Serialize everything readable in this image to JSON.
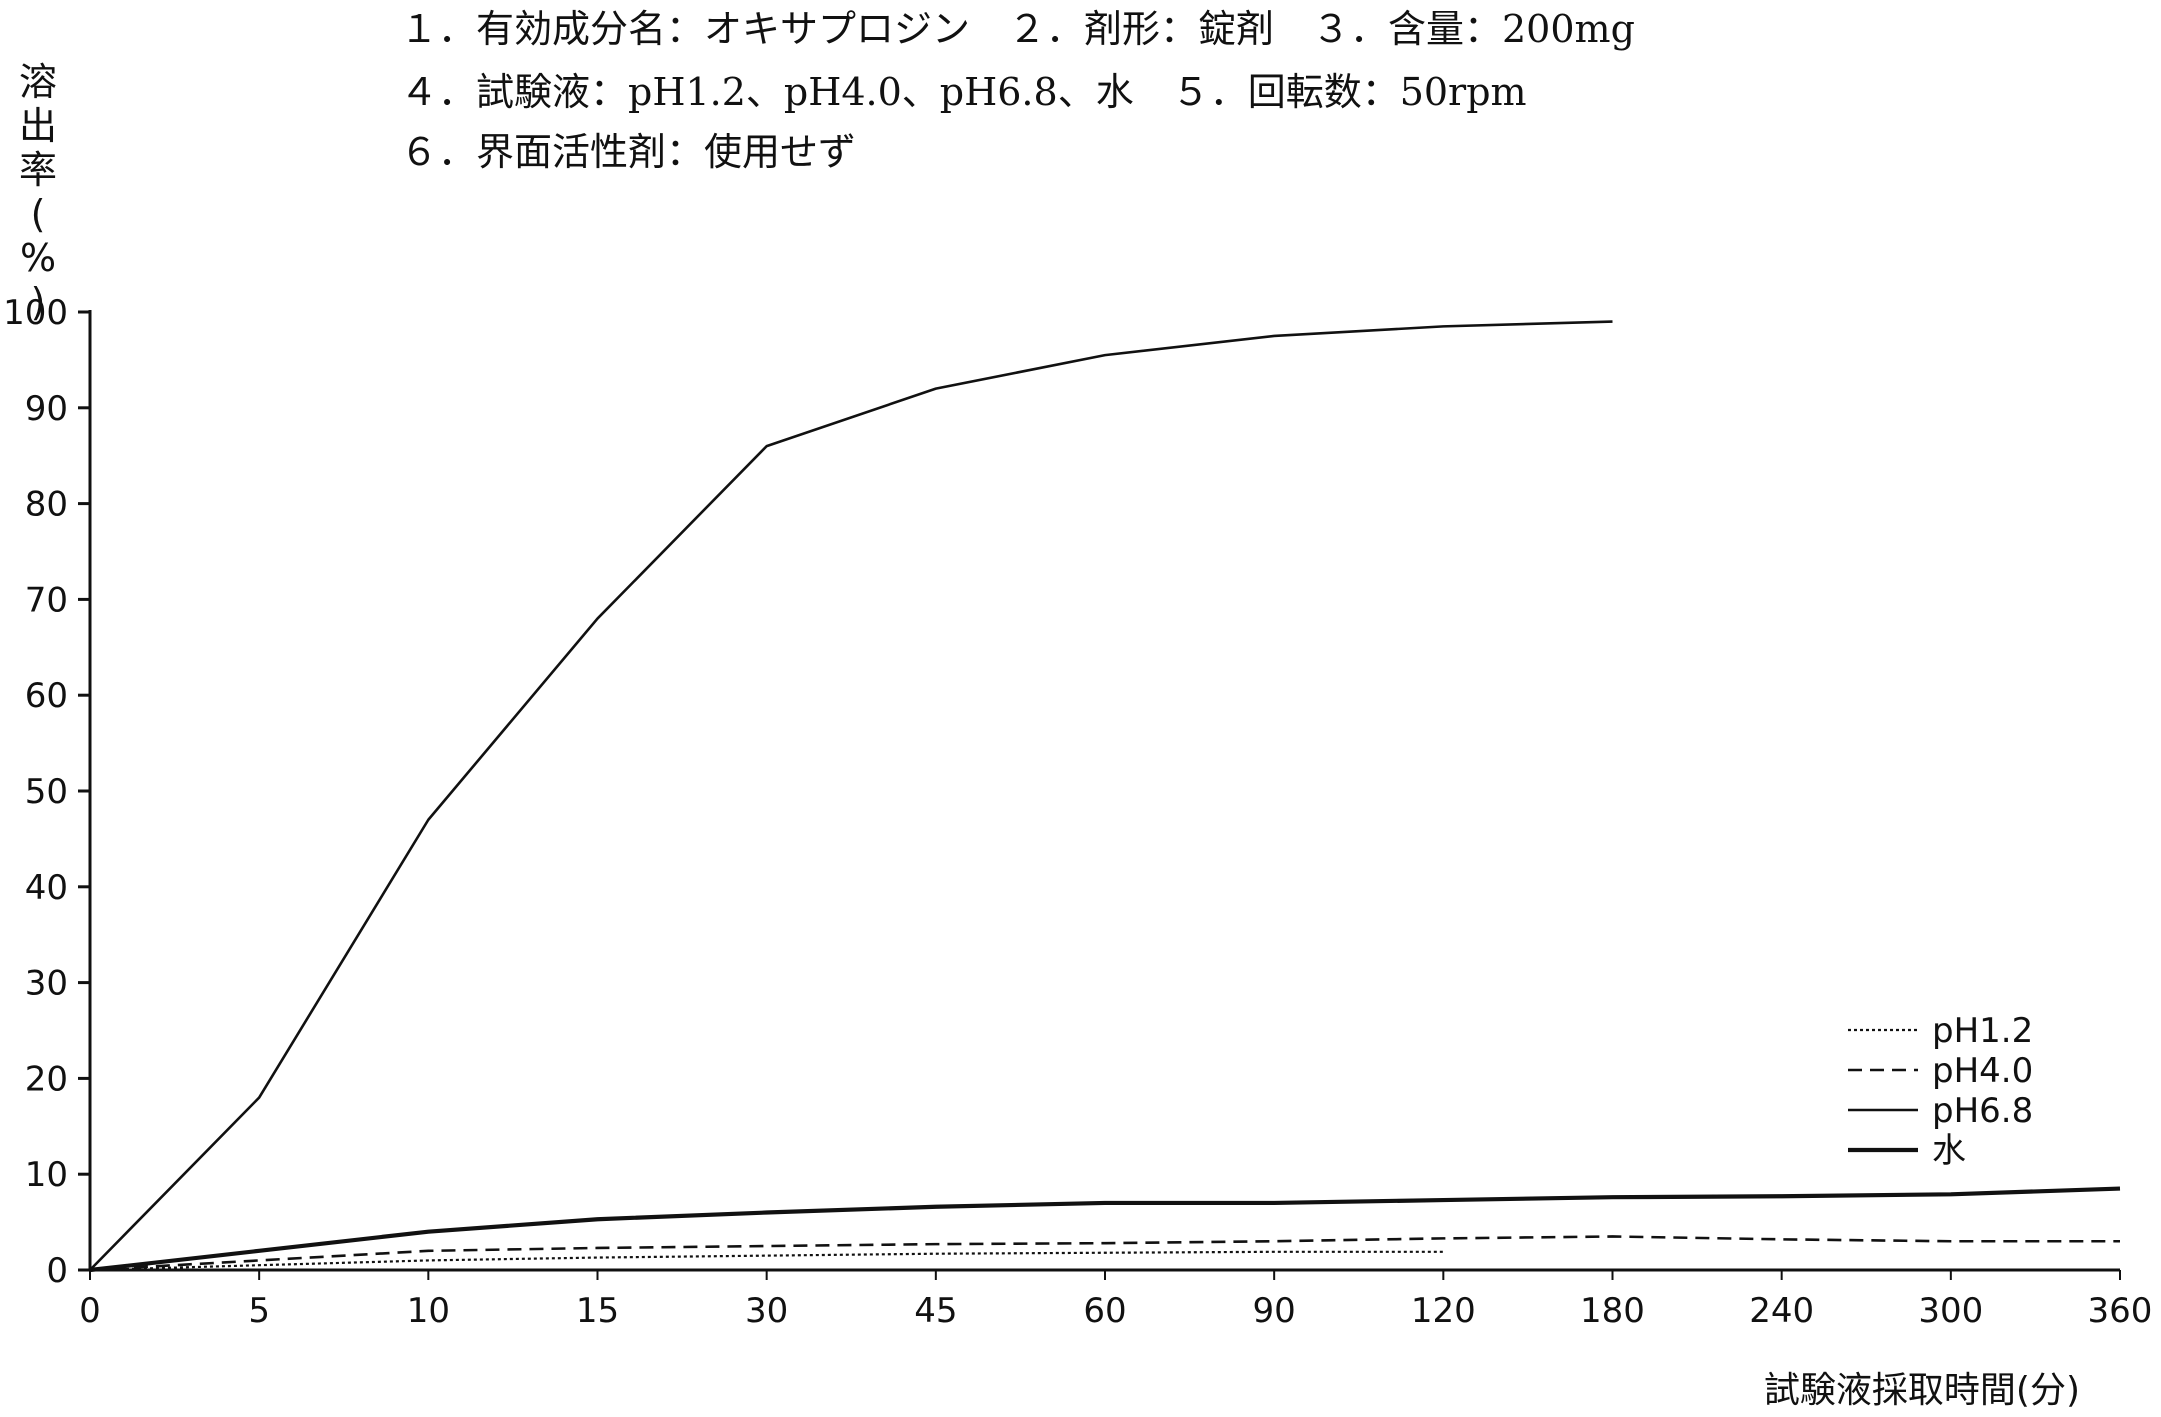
{
  "header": {
    "lines": [
      "１．有効成分名：オキサプロジン　２．剤形：錠剤　３．含量：200mg",
      "４．試験液：pH1.2、pH4.0、pH6.8、水　５．回転数：50rpm",
      "６．界面活性剤：使用せず"
    ]
  },
  "chart_data": {
    "type": "line",
    "title": "",
    "ylabel": "溶出率(%)",
    "ylabel_chars": [
      "溶",
      "出",
      "率",
      "(",
      "%",
      ")"
    ],
    "xlabel": "試験液採取時間(分)",
    "x": [
      "0",
      "5",
      "10",
      "15",
      "30",
      "45",
      "60",
      "90",
      "120",
      "180",
      "240",
      "300",
      "360"
    ],
    "ylim": [
      0,
      100
    ],
    "yticks": [
      "0",
      "10",
      "20",
      "30",
      "40",
      "50",
      "60",
      "70",
      "80",
      "90",
      "100"
    ],
    "grid": false,
    "legend_position": "bottom-right",
    "series": [
      {
        "name": "pH1.2",
        "style": "dotted",
        "values": [
          0,
          0.5,
          1,
          1.3,
          1.5,
          1.7,
          1.8,
          1.9,
          1.9,
          null,
          null,
          null,
          null
        ]
      },
      {
        "name": "pH4.0",
        "style": "dashed",
        "values": [
          0,
          1,
          2,
          2.3,
          2.5,
          2.7,
          2.8,
          3,
          3.3,
          3.5,
          3.2,
          3,
          3
        ]
      },
      {
        "name": "pH6.8",
        "style": "thin",
        "values": [
          0,
          18,
          47,
          68,
          86,
          92,
          95.5,
          97.5,
          98.5,
          99,
          null,
          null,
          null
        ]
      },
      {
        "name": "水",
        "style": "thick",
        "values": [
          0,
          2,
          4,
          5.3,
          6,
          6.6,
          7,
          7,
          7.3,
          7.6,
          7.7,
          7.9,
          8.5
        ]
      }
    ],
    "colors": {
      "line": "#111111"
    }
  }
}
